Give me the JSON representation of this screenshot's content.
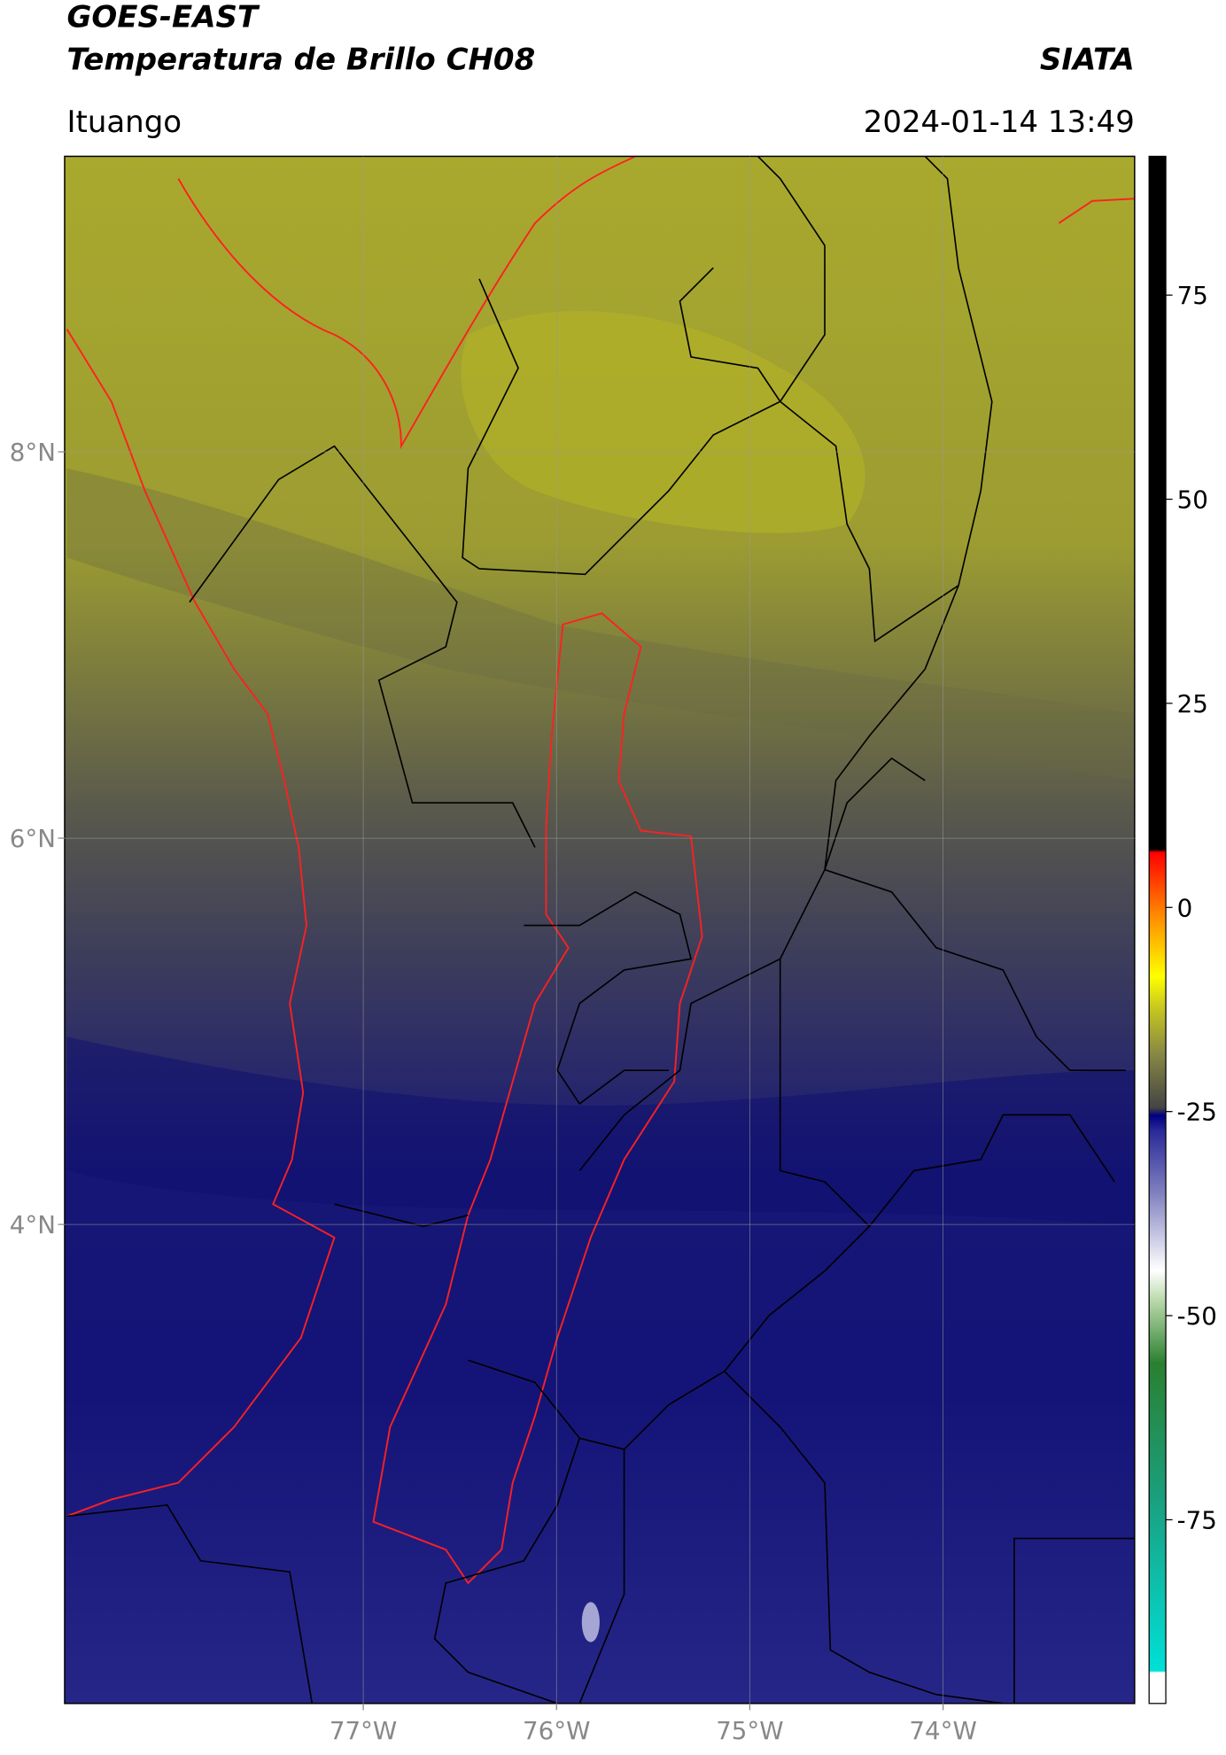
{
  "header": {
    "satellite": "GOES-EAST",
    "product": "Temperatura de Brillo CH08",
    "org": "SIATA",
    "location": "Ituango",
    "datetime": "2024-01-14 13:49"
  },
  "map": {
    "xlim": [
      -78.545,
      -73.009
    ],
    "ylim": [
      1.52,
      9.53
    ],
    "xticks": [
      {
        "value": -77,
        "label": "77°W"
      },
      {
        "value": -76,
        "label": "76°W"
      },
      {
        "value": -75,
        "label": "75°W"
      },
      {
        "value": -74,
        "label": "74°W"
      }
    ],
    "yticks": [
      {
        "value": 8,
        "label": "8°N"
      },
      {
        "value": 6,
        "label": "6°N"
      },
      {
        "value": 4,
        "label": "4°N"
      }
    ],
    "grid": true
  },
  "colorbar": {
    "lim": [
      -97.5,
      92
    ],
    "ticks": [
      75,
      50,
      25,
      0,
      -25,
      -50,
      -75
    ]
  }
}
